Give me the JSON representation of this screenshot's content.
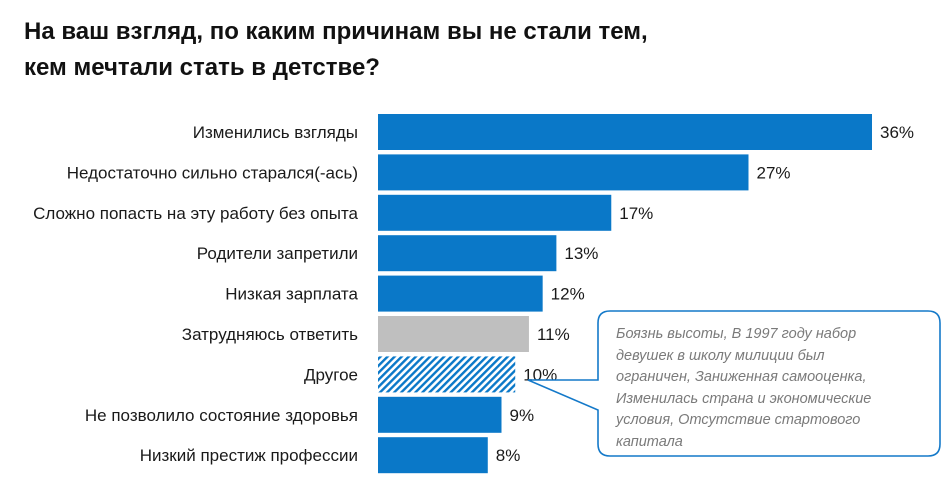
{
  "header": {
    "title_line1": "На ваш взгляд, по каким причинам вы не стали тем,",
    "title_line2": "кем мечтали стать в детстве?"
  },
  "chart_data": {
    "type": "bar",
    "orientation": "horizontal",
    "title": "На ваш взгляд, по каким причинам вы не стали тем, кем мечтали стать в детстве?",
    "xlabel": "",
    "ylabel": "",
    "unit": "%",
    "xlim": [
      0,
      36
    ],
    "grid": false,
    "legend": "none",
    "categories": [
      "Изменились взгляды",
      "Недостаточно сильно старался(-ась)",
      "Сложно попасть на эту работу без опыта",
      "Родители запретили",
      "Низкая зарплата",
      "Затрудняюсь ответить",
      "Другое",
      "Не позволило состояние здоровья",
      "Низкий престиж профессии"
    ],
    "values": [
      36,
      27,
      17,
      13,
      12,
      11,
      10,
      9,
      8
    ],
    "value_labels": [
      "36%",
      "27%",
      "17%",
      "13%",
      "12%",
      "11%",
      "10%",
      "9%",
      "8%"
    ],
    "bar_styles": [
      "solid",
      "solid",
      "solid",
      "solid",
      "solid",
      "gray",
      "hatched",
      "solid",
      "solid"
    ],
    "colors": {
      "primary": "#0a78c8",
      "neutral": "#bfbfbf",
      "callout_border": "#1479c9"
    },
    "annotation": {
      "target": "Другое",
      "text": "Боязнь высоты, В 1997 году набор девушек в школу милиции был ограничен, Заниженная самооценка, Изменилась страна и экономические условия, Отсутствие стартового капитала",
      "lines": [
        "Боязнь высоты, В 1997 году набор",
        "девушек в школу милиции был",
        "ограничен, Заниженная самооценка,",
        "Изменилась страна и экономические",
        "условия, Отсутствие стартового капитала"
      ]
    }
  }
}
